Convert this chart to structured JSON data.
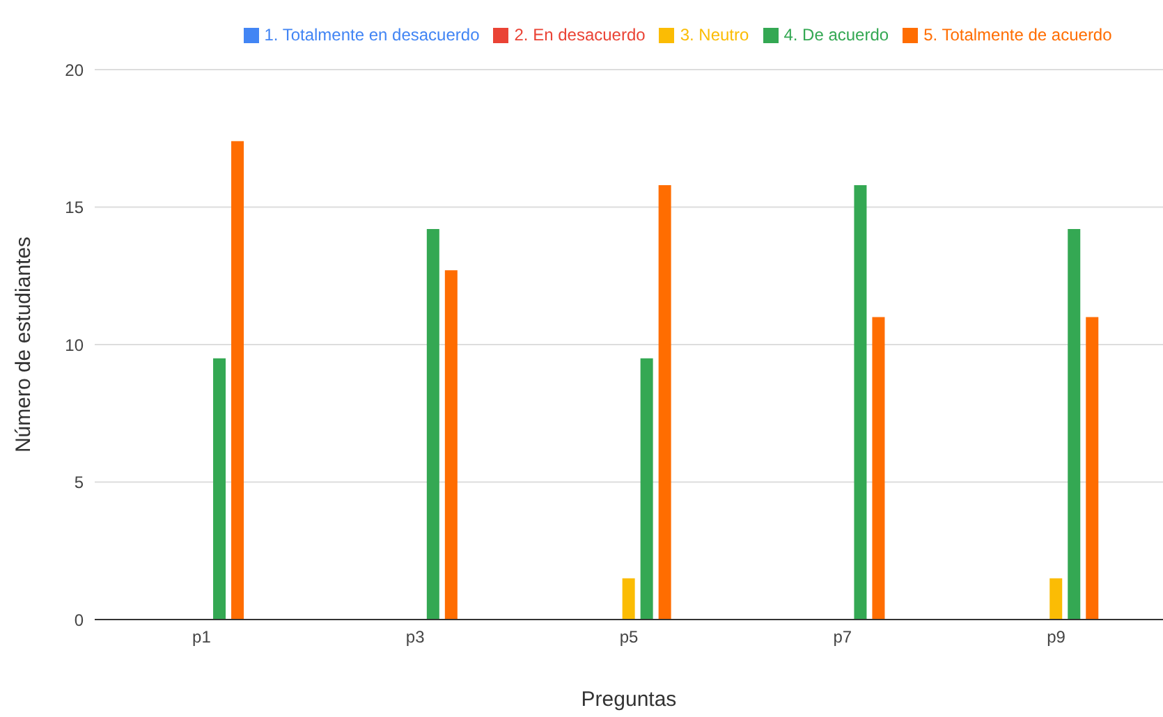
{
  "chart_data": {
    "type": "bar",
    "xlabel": "Preguntas",
    "ylabel": "Número de estudiantes",
    "categories": [
      "p1",
      "p3",
      "p5",
      "p7",
      "p9"
    ],
    "series": [
      {
        "name": "1. Totalmente en desacuerdo",
        "color": "#4285f4",
        "values": [
          0,
          0,
          0,
          0,
          0
        ]
      },
      {
        "name": "2. En desacuerdo",
        "color": "#ea4335",
        "values": [
          0,
          0,
          0,
          0,
          0
        ]
      },
      {
        "name": "3. Neutro",
        "color": "#fbbc04",
        "values": [
          0,
          0,
          1.5,
          0,
          1.5
        ]
      },
      {
        "name": "4. De acuerdo",
        "color": "#34a853",
        "values": [
          9.5,
          14.2,
          9.5,
          15.8,
          14.2
        ]
      },
      {
        "name": "5. Totalmente de acuerdo",
        "color": "#ff6d01",
        "values": [
          17.4,
          12.7,
          15.8,
          11.0,
          11.0
        ]
      }
    ],
    "ylim": [
      0,
      20
    ],
    "yticks": [
      0,
      5,
      10,
      15,
      20
    ],
    "grid": "y",
    "legend": "top"
  }
}
